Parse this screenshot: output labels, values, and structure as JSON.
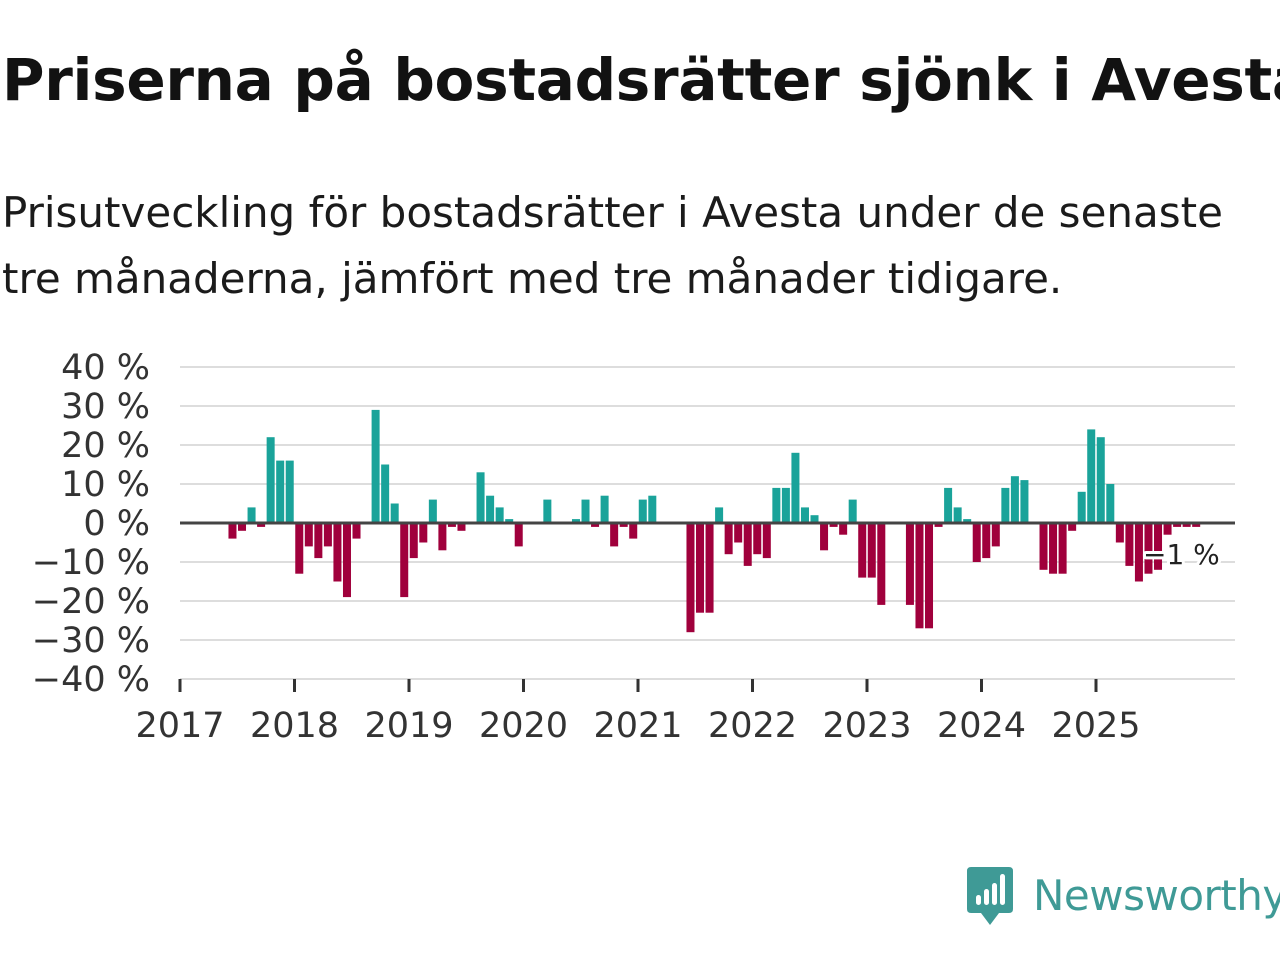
{
  "title": "Priserna på bostadsrätter sjönk i Avesta",
  "subtitle": "Prisutveckling för bostadsrätter i Avesta under de senaste tre månaderna, jämfört med tre månader tidigare.",
  "brand": {
    "name": "Newsworthy",
    "color": "#3f9a96"
  },
  "colors": {
    "positive": "#1aa39a",
    "negative": "#a0003c",
    "gridline": "#dddddd",
    "zero_line": "#444444"
  },
  "chart_data": {
    "type": "bar",
    "title": "Priserna på bostadsrätter sjönk i Avesta",
    "xlabel": "",
    "ylabel": "",
    "unit": "%",
    "ylim": [
      -40,
      40
    ],
    "yticks": [
      40,
      30,
      20,
      10,
      0,
      -10,
      -20,
      -30,
      -40
    ],
    "ytick_labels": [
      "40 %",
      "30 %",
      "20 %",
      "10 %",
      "0 %",
      "−10 %",
      "−20 %",
      "−30 %",
      "−40 %"
    ],
    "xlim": [
      2017.0,
      2026.0
    ],
    "xticks": [
      "2017",
      "2018",
      "2019",
      "2020",
      "2021",
      "2022",
      "2023",
      "2024",
      "2025"
    ],
    "grid": true,
    "end_label": "−1 %",
    "series": [
      {
        "name": "Prisutveckling",
        "start": "2017-01",
        "frequency": "monthly",
        "values": [
          0,
          0,
          0,
          0,
          0,
          -4,
          -2,
          4,
          -1,
          22,
          16,
          16,
          -13,
          -6,
          -9,
          -6,
          -15,
          -19,
          -4,
          0,
          29,
          15,
          5,
          -19,
          -9,
          -5,
          6,
          -7,
          -1,
          -2,
          0,
          13,
          7,
          4,
          1,
          -6,
          0,
          0,
          6,
          0,
          0,
          1,
          6,
          -1,
          7,
          -6,
          -1,
          -4,
          6,
          7,
          0,
          0,
          0,
          -28,
          -23,
          -23,
          4,
          -8,
          -5,
          -11,
          -8,
          -9,
          9,
          9,
          18,
          4,
          2,
          -7,
          -1,
          -3,
          6,
          -14,
          -14,
          -21,
          0,
          0,
          -21,
          -27,
          -27,
          -1,
          9,
          4,
          1,
          -10,
          -9,
          -6,
          9,
          12,
          11,
          0,
          -12,
          -13,
          -13,
          -2,
          8,
          24,
          22,
          10,
          -5,
          -11,
          -15,
          -13,
          -12,
          -3,
          -1,
          -1,
          -1
        ]
      }
    ]
  }
}
